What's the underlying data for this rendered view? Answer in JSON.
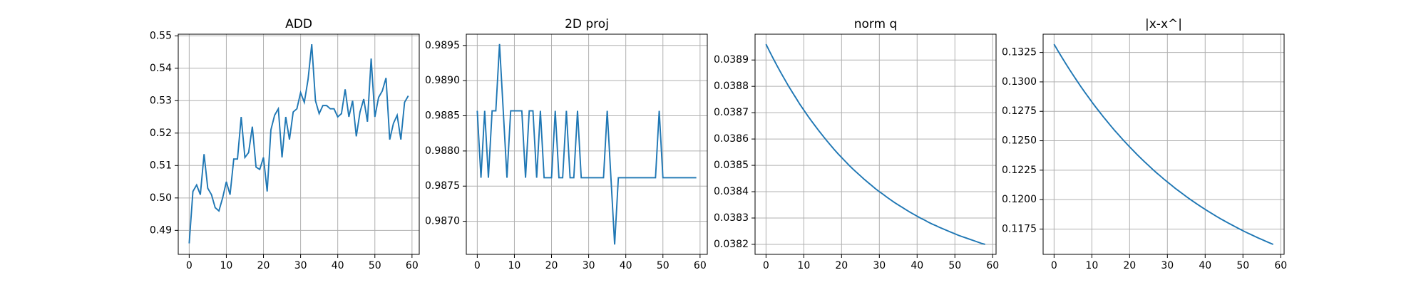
{
  "chart_data": [
    {
      "type": "line",
      "title": "ADD",
      "color": "#1f77b4",
      "grid": true,
      "x": [
        0,
        1,
        2,
        3,
        4,
        5,
        6,
        7,
        8,
        9,
        10,
        11,
        12,
        13,
        14,
        15,
        16,
        17,
        18,
        19,
        20,
        21,
        22,
        23,
        24,
        25,
        26,
        27,
        28,
        29,
        30,
        31,
        32,
        33,
        34,
        35,
        36,
        37,
        38,
        39,
        40,
        41,
        42,
        43,
        44,
        45,
        46,
        47,
        48,
        49,
        50,
        51,
        52,
        53,
        54,
        55,
        56,
        57,
        58,
        59
      ],
      "values": [
        0.486,
        0.502,
        0.504,
        0.501,
        0.5135,
        0.503,
        0.501,
        0.497,
        0.496,
        0.5,
        0.505,
        0.501,
        0.512,
        0.512,
        0.525,
        0.5125,
        0.514,
        0.522,
        0.5095,
        0.5088,
        0.5125,
        0.502,
        0.521,
        0.5255,
        0.5275,
        0.5125,
        0.525,
        0.518,
        0.5265,
        0.5275,
        0.5325,
        0.5295,
        0.5365,
        0.5474,
        0.53,
        0.526,
        0.5285,
        0.5285,
        0.5275,
        0.5275,
        0.525,
        0.526,
        0.5335,
        0.525,
        0.53,
        0.519,
        0.5265,
        0.5305,
        0.5235,
        0.543,
        0.525,
        0.531,
        0.533,
        0.537,
        0.518,
        0.523,
        0.5255,
        0.518,
        0.5295,
        0.5315
      ],
      "xlim": [
        -2.95,
        61.95
      ],
      "xticks": [
        0,
        10,
        20,
        30,
        40,
        50,
        60
      ],
      "ylim": [
        0.4826,
        0.5505
      ],
      "yticks": [
        0.49,
        {
          "value": 0.5,
          "label": "0.50"
        },
        0.51,
        0.52,
        0.53,
        0.54,
        0.55
      ]
    },
    {
      "type": "line",
      "title": "2D proj",
      "color": "#1f77b4",
      "grid": true,
      "x": [
        0,
        1,
        2,
        3,
        4,
        5,
        6,
        7,
        8,
        9,
        10,
        11,
        12,
        13,
        14,
        15,
        16,
        17,
        18,
        19,
        20,
        21,
        22,
        23,
        24,
        25,
        26,
        27,
        28,
        29,
        30,
        31,
        32,
        33,
        34,
        35,
        36,
        37,
        38,
        39,
        40,
        41,
        42,
        43,
        44,
        45,
        46,
        47,
        48,
        49,
        50,
        51,
        52,
        53,
        54,
        55,
        56,
        57,
        58,
        59
      ],
      "values": [
        0.98857,
        0.98762,
        0.98857,
        0.98762,
        0.98857,
        0.98857,
        0.98952,
        0.98857,
        0.98762,
        0.98857,
        0.98857,
        0.98857,
        0.98857,
        0.98762,
        0.98857,
        0.98857,
        0.98762,
        0.98857,
        0.98762,
        0.98762,
        0.98762,
        0.98857,
        0.98762,
        0.98762,
        0.98857,
        0.98762,
        0.98762,
        0.98857,
        0.98762,
        0.98762,
        0.98762,
        0.98762,
        0.98762,
        0.98762,
        0.98762,
        0.98857,
        0.98762,
        0.98667,
        0.98762,
        0.98762,
        0.98762,
        0.98762,
        0.98762,
        0.98762,
        0.98762,
        0.98762,
        0.98762,
        0.98762,
        0.98762,
        0.98857,
        0.98762,
        0.98762,
        0.98762,
        0.98762,
        0.98762,
        0.98762,
        0.98762,
        0.98762,
        0.98762,
        0.98762
      ],
      "xlim": [
        -2.95,
        61.95
      ],
      "xticks": [
        0,
        10,
        20,
        30,
        40,
        50,
        60
      ],
      "ylim": [
        0.98653,
        0.98966
      ],
      "yticks": [
        {
          "value": 0.987,
          "label": "0.9870"
        },
        0.9875,
        {
          "value": 0.988,
          "label": "0.9880"
        },
        0.9885,
        {
          "value": 0.989,
          "label": "0.9890"
        },
        0.9895
      ]
    },
    {
      "type": "line",
      "title": "norm q",
      "color": "#1f77b4",
      "grid": true,
      "x": [
        0,
        1,
        2,
        3,
        4,
        5,
        6,
        7,
        8,
        9,
        10,
        11,
        12,
        13,
        14,
        15,
        16,
        17,
        18,
        19,
        20,
        21,
        22,
        23,
        24,
        25,
        26,
        27,
        28,
        29,
        30,
        31,
        32,
        33,
        34,
        35,
        36,
        37,
        38,
        39,
        40,
        41,
        42,
        43,
        44,
        45,
        46,
        47,
        48,
        49,
        50,
        51,
        52,
        53,
        54,
        55,
        56,
        57,
        58
      ],
      "values": [
        0.03896,
        0.038931,
        0.038903,
        0.038876,
        0.03885,
        0.038825,
        0.0388,
        0.038777,
        0.038754,
        0.038731,
        0.03871,
        0.038689,
        0.038669,
        0.03865,
        0.038631,
        0.038613,
        0.038595,
        0.038578,
        0.038561,
        0.038545,
        0.03853,
        0.038515,
        0.0385,
        0.038486,
        0.038473,
        0.03846,
        0.038447,
        0.038435,
        0.038423,
        0.038411,
        0.0384,
        0.03839,
        0.038379,
        0.038369,
        0.038359,
        0.03835,
        0.038341,
        0.038332,
        0.038323,
        0.038315,
        0.038307,
        0.038299,
        0.038292,
        0.038284,
        0.038277,
        0.038271,
        0.038264,
        0.038258,
        0.038252,
        0.038246,
        0.03824,
        0.038234,
        0.038229,
        0.038224,
        0.038219,
        0.038214,
        0.038209,
        0.038204,
        0.0382
      ],
      "xlim": [
        -2.9,
        60.9
      ],
      "xticks": [
        0,
        10,
        20,
        30,
        40,
        50,
        60
      ],
      "ylim": [
        0.038162,
        0.038998
      ],
      "yticks": [
        0.0382,
        0.0383,
        0.0384,
        0.0385,
        0.0386,
        0.0387,
        0.0388,
        0.0389
      ]
    },
    {
      "type": "line",
      "title": "|x-x^|",
      "color": "#1f77b4",
      "grid": true,
      "x": [
        0,
        1,
        2,
        3,
        4,
        5,
        6,
        7,
        8,
        9,
        10,
        11,
        12,
        13,
        14,
        15,
        16,
        17,
        18,
        19,
        20,
        21,
        22,
        23,
        24,
        25,
        26,
        27,
        28,
        29,
        30,
        31,
        32,
        33,
        34,
        35,
        36,
        37,
        38,
        39,
        40,
        41,
        42,
        43,
        44,
        45,
        46,
        47,
        48,
        49,
        50,
        51,
        52,
        53,
        54,
        55,
        56,
        57,
        58
      ],
      "values": [
        0.1332,
        0.13265,
        0.13212,
        0.1316,
        0.13109,
        0.1306,
        0.13012,
        0.12964,
        0.12918,
        0.12874,
        0.1283,
        0.12787,
        0.12746,
        0.12705,
        0.12666,
        0.12627,
        0.12589,
        0.12553,
        0.12517,
        0.12482,
        0.12448,
        0.12415,
        0.12382,
        0.12351,
        0.1232,
        0.1229,
        0.1226,
        0.12231,
        0.12204,
        0.12176,
        0.1215,
        0.12124,
        0.12098,
        0.12074,
        0.1205,
        0.12026,
        0.12003,
        0.11981,
        0.11959,
        0.11938,
        0.11917,
        0.11897,
        0.11877,
        0.11858,
        0.11839,
        0.11821,
        0.11803,
        0.11786,
        0.11769,
        0.11752,
        0.11736,
        0.1172,
        0.11705,
        0.1169,
        0.11675,
        0.11661,
        0.11647,
        0.11633,
        0.1162
      ],
      "xlim": [
        -2.9,
        60.9
      ],
      "xticks": [
        0,
        10,
        20,
        30,
        40,
        50,
        60
      ],
      "ylim": [
        0.11535,
        0.13405
      ],
      "yticks": [
        0.1175,
        {
          "value": 0.12,
          "label": "0.1200"
        },
        0.1225,
        {
          "value": 0.125,
          "label": "0.1250"
        },
        0.1275,
        {
          "value": 0.13,
          "label": "0.1300"
        },
        0.1325
      ]
    }
  ]
}
